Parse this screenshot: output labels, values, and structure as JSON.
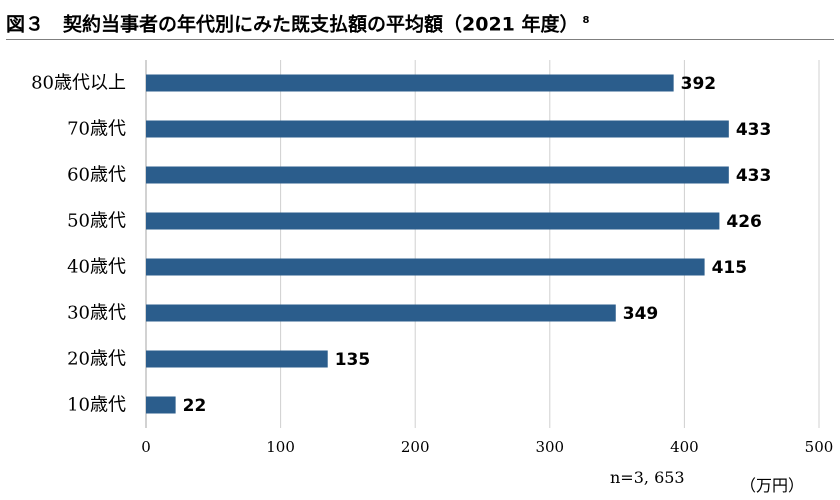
{
  "header": {
    "title": "図３　契約当事者の年代別にみた既支払額の平均額（2021 年度）",
    "footnote_mark": "8"
  },
  "chart_data": {
    "type": "bar",
    "orientation": "horizontal",
    "categories": [
      "80歳代以上",
      "70歳代",
      "60歳代",
      "50歳代",
      "40歳代",
      "30歳代",
      "20歳代",
      "10歳代"
    ],
    "values": [
      392,
      433,
      433,
      426,
      415,
      349,
      135,
      22
    ],
    "value_labels": [
      "392",
      "433",
      "433",
      "426",
      "415",
      "349",
      "135",
      "22"
    ],
    "xlim": [
      0,
      500
    ],
    "xticks": [
      0,
      100,
      200,
      300,
      400,
      500
    ],
    "xtick_labels": [
      "0",
      "100",
      "200",
      "300",
      "400",
      "500"
    ],
    "grid": true,
    "bar_color": "#2b5d8c",
    "sample_note": "n=3, 653",
    "unit": "（万円）"
  }
}
